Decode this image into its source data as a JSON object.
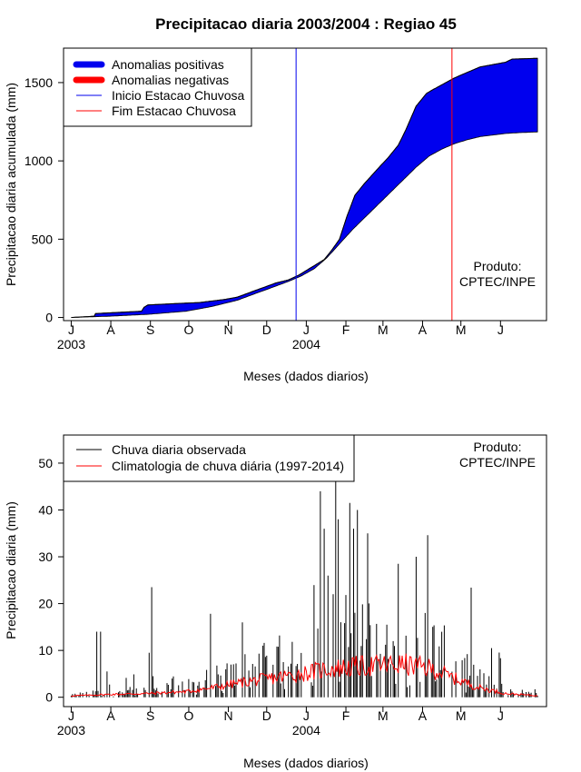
{
  "chart_data": [
    {
      "type": "area",
      "title": "Precipitacao diaria 2003/2004 : Regiao 45",
      "xlabel": "Meses (dados diarios)",
      "ylabel": "Precipitacao diaria acumulada (mm)",
      "ylim": [
        -20,
        1720
      ],
      "yticks": [
        0,
        500,
        1000,
        1500
      ],
      "month_ticks": [
        "J",
        "A",
        "S",
        "O",
        "N",
        "D",
        "J",
        "F",
        "M",
        "A",
        "M",
        "J"
      ],
      "year_labels": [
        "2003",
        "2004"
      ],
      "month_starts_day": [
        0,
        31,
        62,
        92,
        123,
        153,
        184,
        215,
        244,
        275,
        305,
        336
      ],
      "xlim_day": [
        -6,
        372
      ],
      "n_days": 366,
      "observed_cumulative": {
        "days": [
          0,
          18,
          19,
          55,
          57,
          60,
          85,
          100,
          120,
          130,
          150,
          160,
          170,
          178,
          184,
          190,
          198,
          203,
          210,
          216,
          222,
          230,
          240,
          248,
          256,
          262,
          270,
          278,
          282,
          300,
          320,
          340,
          345,
          365
        ],
        "values": [
          0,
          8,
          25,
          40,
          65,
          80,
          90,
          95,
          115,
          130,
          190,
          220,
          240,
          270,
          300,
          330,
          370,
          420,
          500,
          650,
          780,
          860,
          950,
          1020,
          1100,
          1200,
          1350,
          1430,
          1450,
          1530,
          1600,
          1630,
          1650,
          1655
        ]
      },
      "climatology_cumulative": {
        "days": [
          0,
          30,
          60,
          90,
          110,
          130,
          150,
          160,
          170,
          180,
          190,
          200,
          210,
          220,
          230,
          240,
          250,
          260,
          270,
          280,
          290,
          300,
          310,
          320,
          330,
          340,
          350,
          365
        ],
        "values": [
          0,
          8,
          20,
          40,
          70,
          110,
          170,
          200,
          230,
          265,
          310,
          380,
          470,
          560,
          640,
          720,
          800,
          880,
          960,
          1030,
          1075,
          1110,
          1135,
          1155,
          1165,
          1175,
          1180,
          1185
        ]
      },
      "rainy_season_start_day": 176,
      "rainy_season_end_day": 298,
      "colors": {
        "positive": "#0000ee",
        "negative": "#ff0000",
        "start_line": "#0000ee",
        "end_line": "#ff0000"
      },
      "legend": {
        "position": "top-left",
        "entries": [
          {
            "label": "Anomalias positivas",
            "color": "#0000ee",
            "style": "thick"
          },
          {
            "label": "Anomalias negativas",
            "color": "#ff0000",
            "style": "thick"
          },
          {
            "label": "Inicio Estacao Chuvosa",
            "color": "#0000ee",
            "style": "thin"
          },
          {
            "label": "Fim Estacao Chuvosa",
            "color": "#ff0000",
            "style": "thin"
          }
        ]
      },
      "annotation": [
        "Produto:",
        "CPTEC/INPE"
      ]
    },
    {
      "type": "bar",
      "xlabel": "Meses (dados diarios)",
      "ylabel": "Precipitacao diaria (mm)",
      "ylim": [
        -2,
        56
      ],
      "yticks": [
        0,
        10,
        20,
        30,
        40,
        50
      ],
      "month_ticks": [
        "J",
        "A",
        "S",
        "O",
        "N",
        "D",
        "J",
        "F",
        "M",
        "A",
        "M",
        "J"
      ],
      "year_labels": [
        "2003",
        "2004"
      ],
      "notable_daily_values": [
        {
          "day": 20,
          "value": 14
        },
        {
          "day": 23,
          "value": 14
        },
        {
          "day": 28,
          "value": 5.5
        },
        {
          "day": 61,
          "value": 9.5
        },
        {
          "day": 63,
          "value": 23.5
        },
        {
          "day": 64,
          "value": 4.5
        },
        {
          "day": 195,
          "value": 44
        },
        {
          "day": 198,
          "value": 36
        },
        {
          "day": 201,
          "value": 26
        },
        {
          "day": 205,
          "value": 22
        },
        {
          "day": 207,
          "value": 47
        },
        {
          "day": 209,
          "value": 38
        },
        {
          "day": 218,
          "value": 41.5
        },
        {
          "day": 221,
          "value": 36
        },
        {
          "day": 224,
          "value": 40
        },
        {
          "day": 232,
          "value": 35
        },
        {
          "day": 256,
          "value": 28.5
        },
        {
          "day": 270,
          "value": 30
        }
      ],
      "climatology_profile": {
        "days": [
          0,
          30,
          60,
          90,
          110,
          130,
          150,
          160,
          180,
          200,
          220,
          240,
          260,
          280,
          290,
          300,
          320,
          340,
          365
        ],
        "values": [
          0.3,
          0.6,
          0.8,
          1.2,
          2.0,
          3.0,
          3.8,
          4.2,
          5.0,
          6.0,
          6.5,
          6.8,
          7.0,
          6.2,
          5.2,
          4.0,
          2.0,
          0.8,
          0.3
        ]
      },
      "colors": {
        "observed": "#000000",
        "climatology": "#ff0000"
      },
      "legend": {
        "position": "top-left",
        "entries": [
          {
            "label": "Chuva diaria observada",
            "color": "#000000",
            "style": "thin"
          },
          {
            "label": "Climatologia de chuva diária (1997-2014)",
            "color": "#ff0000",
            "style": "thin"
          }
        ]
      },
      "annotation": [
        "Produto:",
        "CPTEC/INPE"
      ]
    }
  ]
}
